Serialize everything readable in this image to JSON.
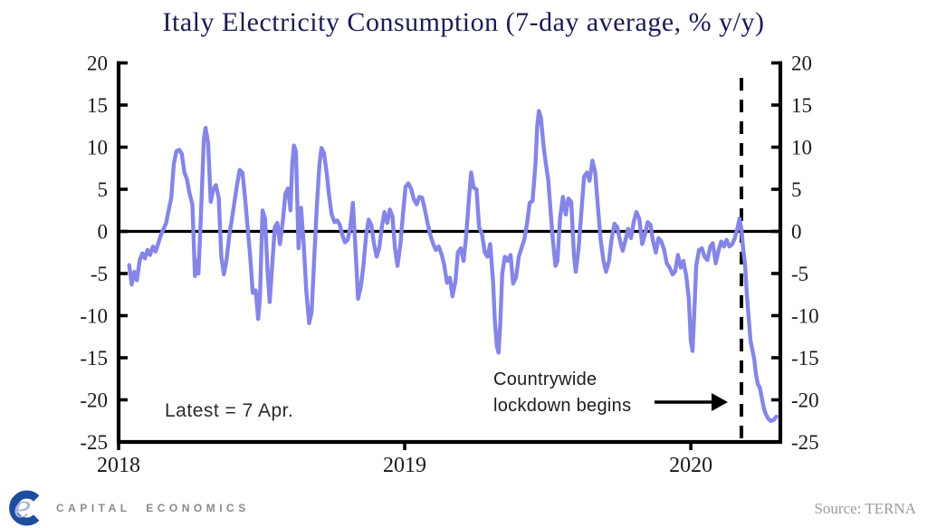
{
  "title": "Italy Electricity Consumption (7-day average, % y/y)",
  "annotations": {
    "latest_label": "Latest = 7 Apr.",
    "lockdown_line1": "Countrywide",
    "lockdown_line2": "lockdown begins",
    "lockdown_event_x": 2020.177
  },
  "footer": {
    "brand": "CAPITAL ECONOMICS",
    "source": "Source: TERNA"
  },
  "colors": {
    "line": "#8585e8",
    "title_navy": "#1a1b52",
    "axis_black": "#000000",
    "tick_label": "#1a1a1a",
    "brand_blue": "#1c4da1",
    "brand_lavender": "#a9b3dd",
    "brand_gray": "#8a8a8a",
    "source_gray": "#9a9a9a"
  },
  "chart_data": {
    "type": "line",
    "title": "Italy Electricity Consumption (7-day average, % y/y)",
    "xlabel": "",
    "ylabel": "% y/y",
    "xlim": [
      2018.0,
      2020.313
    ],
    "ylim": [
      -25,
      20
    ],
    "y_ticks": [
      20,
      15,
      10,
      5,
      0,
      -5,
      -10,
      -15,
      -20,
      -25
    ],
    "x_ticks": [
      2018,
      2019,
      2020
    ],
    "x_tick_labels": [
      "2018",
      "2019",
      "2020"
    ],
    "grid": false,
    "zero_line": true,
    "dual_axis": true,
    "legend_position": "none",
    "series": [
      {
        "name": "Italy electricity consumption (7-day average, % y/y)",
        "points": [
          [
            2018.037,
            -4.0
          ],
          [
            2018.046,
            -6.3
          ],
          [
            2018.055,
            -4.8
          ],
          [
            2018.064,
            -5.8
          ],
          [
            2018.074,
            -3.4
          ],
          [
            2018.083,
            -2.6
          ],
          [
            2018.092,
            -3.2
          ],
          [
            2018.101,
            -2.2
          ],
          [
            2018.11,
            -2.8
          ],
          [
            2018.12,
            -1.8
          ],
          [
            2018.129,
            -2.4
          ],
          [
            2018.138,
            -1.5
          ],
          [
            2018.147,
            -0.5
          ],
          [
            2018.156,
            0.2
          ],
          [
            2018.166,
            1.0
          ],
          [
            2018.175,
            2.5
          ],
          [
            2018.184,
            4.0
          ],
          [
            2018.193,
            8.0
          ],
          [
            2018.202,
            9.5
          ],
          [
            2018.212,
            9.7
          ],
          [
            2018.221,
            9.2
          ],
          [
            2018.23,
            7.0
          ],
          [
            2018.239,
            6.2
          ],
          [
            2018.248,
            4.5
          ],
          [
            2018.258,
            3.2
          ],
          [
            2018.267,
            -5.3
          ],
          [
            2018.273,
            -3.5
          ],
          [
            2018.279,
            -5.0
          ],
          [
            2018.288,
            2.0
          ],
          [
            2018.298,
            11.0
          ],
          [
            2018.304,
            12.3
          ],
          [
            2018.313,
            10.5
          ],
          [
            2018.322,
            3.5
          ],
          [
            2018.331,
            5.0
          ],
          [
            2018.34,
            5.5
          ],
          [
            2018.35,
            4.0
          ],
          [
            2018.359,
            -3.0
          ],
          [
            2018.368,
            -5.1
          ],
          [
            2018.377,
            -3.5
          ],
          [
            2018.387,
            -0.5
          ],
          [
            2018.396,
            1.5
          ],
          [
            2018.405,
            3.5
          ],
          [
            2018.414,
            5.5
          ],
          [
            2018.423,
            7.3
          ],
          [
            2018.433,
            7.0
          ],
          [
            2018.442,
            4.0
          ],
          [
            2018.451,
            0.5
          ],
          [
            2018.46,
            -3.0
          ],
          [
            2018.469,
            -7.3
          ],
          [
            2018.479,
            -7.0
          ],
          [
            2018.488,
            -10.4
          ],
          [
            2018.494,
            -8.0
          ],
          [
            2018.503,
            2.5
          ],
          [
            2018.512,
            1.5
          ],
          [
            2018.521,
            -5.0
          ],
          [
            2018.528,
            -8.4
          ],
          [
            2018.537,
            -4.0
          ],
          [
            2018.546,
            0.5
          ],
          [
            2018.555,
            1.0
          ],
          [
            2018.564,
            -1.5
          ],
          [
            2018.574,
            1.2
          ],
          [
            2018.583,
            4.5
          ],
          [
            2018.592,
            5.1
          ],
          [
            2018.601,
            2.5
          ],
          [
            2018.607,
            8.0
          ],
          [
            2018.613,
            10.2
          ],
          [
            2018.62,
            9.5
          ],
          [
            2018.629,
            -2.0
          ],
          [
            2018.638,
            2.8
          ],
          [
            2018.647,
            -1.5
          ],
          [
            2018.656,
            -7.0
          ],
          [
            2018.666,
            -10.9
          ],
          [
            2018.675,
            -9.5
          ],
          [
            2018.684,
            -3.0
          ],
          [
            2018.693,
            3.0
          ],
          [
            2018.702,
            8.0
          ],
          [
            2018.709,
            9.9
          ],
          [
            2018.718,
            9.3
          ],
          [
            2018.727,
            7.0
          ],
          [
            2018.736,
            4.2
          ],
          [
            2018.745,
            2.0
          ],
          [
            2018.755,
            1.1
          ],
          [
            2018.764,
            1.3
          ],
          [
            2018.773,
            0.8
          ],
          [
            2018.782,
            -0.4
          ],
          [
            2018.791,
            -1.3
          ],
          [
            2018.801,
            -1.0
          ],
          [
            2018.81,
            0.5
          ],
          [
            2018.819,
            3.4
          ],
          [
            2018.828,
            -2.0
          ],
          [
            2018.837,
            -8.0
          ],
          [
            2018.847,
            -6.5
          ],
          [
            2018.856,
            -4.0
          ],
          [
            2018.865,
            -0.5
          ],
          [
            2018.874,
            1.4
          ],
          [
            2018.883,
            0.8
          ],
          [
            2018.893,
            -1.5
          ],
          [
            2018.902,
            -3.0
          ],
          [
            2018.911,
            -2.0
          ],
          [
            2018.92,
            0.5
          ],
          [
            2018.929,
            2.3
          ],
          [
            2018.939,
            1.0
          ],
          [
            2018.948,
            2.6
          ],
          [
            2018.957,
            1.8
          ],
          [
            2018.966,
            -2.0
          ],
          [
            2018.975,
            -4.1
          ],
          [
            2018.985,
            -1.5
          ],
          [
            2018.994,
            2.0
          ],
          [
            2019.003,
            5.3
          ],
          [
            2019.013,
            5.7
          ],
          [
            2019.023,
            5.0
          ],
          [
            2019.032,
            3.8
          ],
          [
            2019.042,
            3.2
          ],
          [
            2019.051,
            4.1
          ],
          [
            2019.061,
            4.0
          ],
          [
            2019.071,
            2.5
          ],
          [
            2019.08,
            1.0
          ],
          [
            2019.09,
            -0.5
          ],
          [
            2019.1,
            -1.5
          ],
          [
            2019.109,
            -2.2
          ],
          [
            2019.119,
            -1.8
          ],
          [
            2019.129,
            -2.7
          ],
          [
            2019.138,
            -4.0
          ],
          [
            2019.148,
            -6.1
          ],
          [
            2019.158,
            -5.5
          ],
          [
            2019.167,
            -7.7
          ],
          [
            2019.177,
            -6.0
          ],
          [
            2019.186,
            -2.5
          ],
          [
            2019.196,
            -2.0
          ],
          [
            2019.206,
            -3.5
          ],
          [
            2019.215,
            -0.5
          ],
          [
            2019.225,
            4.0
          ],
          [
            2019.232,
            7.0
          ],
          [
            2019.241,
            5.2
          ],
          [
            2019.251,
            5.0
          ],
          [
            2019.26,
            0.5
          ],
          [
            2019.27,
            -0.3
          ],
          [
            2019.28,
            -2.5
          ],
          [
            2019.289,
            -3.0
          ],
          [
            2019.299,
            -1.5
          ],
          [
            2019.309,
            -6.0
          ],
          [
            2019.315,
            -10.5
          ],
          [
            2019.322,
            -13.6
          ],
          [
            2019.328,
            -14.4
          ],
          [
            2019.334,
            -11.0
          ],
          [
            2019.341,
            -5.0
          ],
          [
            2019.35,
            -3.0
          ],
          [
            2019.36,
            -3.5
          ],
          [
            2019.37,
            -2.8
          ],
          [
            2019.379,
            -6.2
          ],
          [
            2019.389,
            -5.5
          ],
          [
            2019.399,
            -3.0
          ],
          [
            2019.408,
            -2.0
          ],
          [
            2019.418,
            -1.0
          ],
          [
            2019.428,
            1.0
          ],
          [
            2019.437,
            3.4
          ],
          [
            2019.447,
            3.6
          ],
          [
            2019.457,
            8.0
          ],
          [
            2019.463,
            12.5
          ],
          [
            2019.469,
            14.3
          ],
          [
            2019.476,
            13.5
          ],
          [
            2019.486,
            10.0
          ],
          [
            2019.492,
            8.4
          ],
          [
            2019.502,
            6.0
          ],
          [
            2019.511,
            2.0
          ],
          [
            2019.518,
            -1.0
          ],
          [
            2019.527,
            -4.1
          ],
          [
            2019.534,
            -3.5
          ],
          [
            2019.543,
            1.5
          ],
          [
            2019.553,
            4.1
          ],
          [
            2019.563,
            2.0
          ],
          [
            2019.572,
            3.9
          ],
          [
            2019.582,
            3.5
          ],
          [
            2019.592,
            -3.0
          ],
          [
            2019.598,
            -4.8
          ],
          [
            2019.608,
            -2.0
          ],
          [
            2019.617,
            2.0
          ],
          [
            2019.627,
            6.5
          ],
          [
            2019.637,
            7.0
          ],
          [
            2019.646,
            6.0
          ],
          [
            2019.656,
            8.4
          ],
          [
            2019.666,
            7.0
          ],
          [
            2019.675,
            3.0
          ],
          [
            2019.685,
            -1.0
          ],
          [
            2019.695,
            -3.5
          ],
          [
            2019.704,
            -4.8
          ],
          [
            2019.714,
            -3.5
          ],
          [
            2019.723,
            -1.0
          ],
          [
            2019.733,
            0.9
          ],
          [
            2019.743,
            0.5
          ],
          [
            2019.752,
            -1.0
          ],
          [
            2019.762,
            -2.3
          ],
          [
            2019.772,
            -1.0
          ],
          [
            2019.781,
            0.3
          ],
          [
            2019.791,
            -0.8
          ],
          [
            2019.801,
            1.2
          ],
          [
            2019.81,
            2.3
          ],
          [
            2019.82,
            1.5
          ],
          [
            2019.83,
            -1.5
          ],
          [
            2019.839,
            -0.5
          ],
          [
            2019.849,
            1.1
          ],
          [
            2019.859,
            0.8
          ],
          [
            2019.868,
            -1.2
          ],
          [
            2019.878,
            -2.5
          ],
          [
            2019.887,
            -0.8
          ],
          [
            2019.897,
            -1.2
          ],
          [
            2019.907,
            -2.2
          ],
          [
            2019.916,
            -3.8
          ],
          [
            2019.926,
            -4.3
          ],
          [
            2019.936,
            -5.1
          ],
          [
            2019.945,
            -4.8
          ],
          [
            2019.955,
            -2.8
          ],
          [
            2019.965,
            -4.3
          ],
          [
            2019.974,
            -3.5
          ],
          [
            2019.984,
            -5.2
          ],
          [
            2019.993,
            -8.0
          ],
          [
            2020.0,
            -13.0
          ],
          [
            2020.006,
            -14.2
          ],
          [
            2020.013,
            -9.0
          ],
          [
            2020.019,
            -4.0
          ],
          [
            2020.029,
            -2.2
          ],
          [
            2020.039,
            -2.0
          ],
          [
            2020.048,
            -3.0
          ],
          [
            2020.058,
            -3.4
          ],
          [
            2020.068,
            -1.8
          ],
          [
            2020.077,
            -1.4
          ],
          [
            2020.087,
            -3.8
          ],
          [
            2020.097,
            -2.3
          ],
          [
            2020.106,
            -1.2
          ],
          [
            2020.116,
            -1.8
          ],
          [
            2020.125,
            -1.0
          ],
          [
            2020.135,
            -1.8
          ],
          [
            2020.145,
            -1.5
          ],
          [
            2020.154,
            -0.8
          ],
          [
            2020.164,
            0.5
          ],
          [
            2020.17,
            1.5
          ],
          [
            2020.177,
            0.3
          ],
          [
            2020.183,
            -2.0
          ],
          [
            2020.19,
            -4.1
          ],
          [
            2020.196,
            -7.5
          ],
          [
            2020.203,
            -10.5
          ],
          [
            2020.209,
            -13.0
          ],
          [
            2020.215,
            -14.0
          ],
          [
            2020.222,
            -15.2
          ],
          [
            2020.228,
            -17.0
          ],
          [
            2020.235,
            -18.2
          ],
          [
            2020.241,
            -18.5
          ],
          [
            2020.247,
            -19.5
          ],
          [
            2020.254,
            -20.8
          ],
          [
            2020.26,
            -21.5
          ],
          [
            2020.27,
            -22.2
          ],
          [
            2020.279,
            -22.5
          ],
          [
            2020.289,
            -22.4
          ],
          [
            2020.299,
            -22.0
          ]
        ]
      }
    ]
  }
}
